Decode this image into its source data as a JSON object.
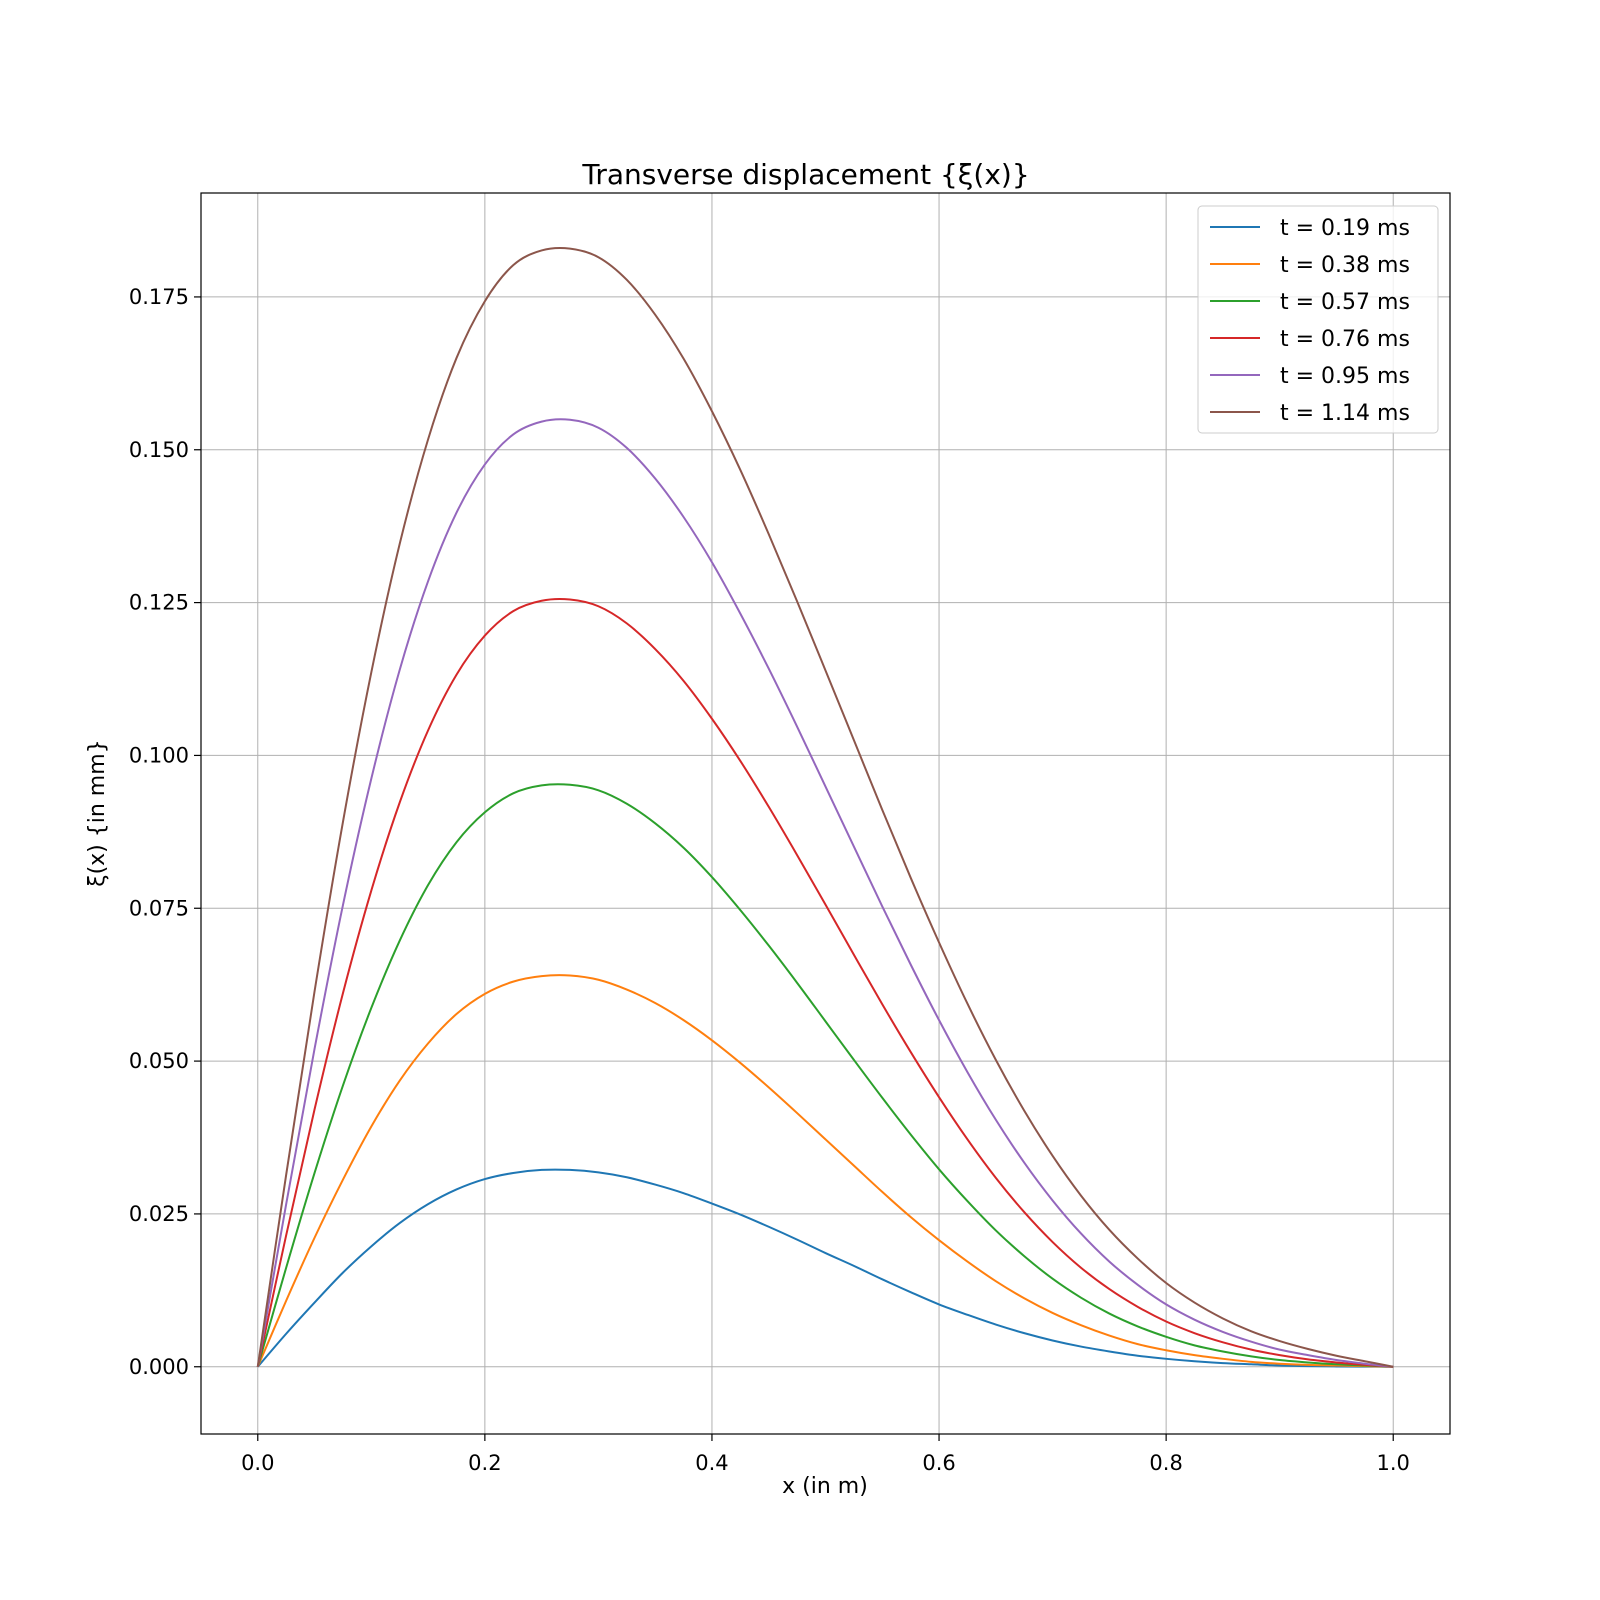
{
  "chart_data": {
    "type": "line",
    "title": "Transverse displacement {ξ(x)}",
    "xlabel": "x (in m)",
    "ylabel": "ξ(x) {in mm}",
    "xlim": [
      -0.05,
      1.05
    ],
    "ylim": [
      -0.011,
      0.192
    ],
    "xticks": [
      0.0,
      0.2,
      0.4,
      0.6,
      0.8,
      1.0
    ],
    "xtick_labels": [
      "0.0",
      "0.2",
      "0.4",
      "0.6",
      "0.8",
      "1.0"
    ],
    "yticks": [
      0.0,
      0.025,
      0.05,
      0.075,
      0.1,
      0.125,
      0.15,
      0.175
    ],
    "ytick_labels": [
      "0.000",
      "0.025",
      "0.050",
      "0.075",
      "0.100",
      "0.125",
      "0.150",
      "0.175"
    ],
    "grid": true,
    "legend_position": "top-right",
    "x": [
      0.0,
      0.025,
      0.05,
      0.075,
      0.1,
      0.125,
      0.15,
      0.175,
      0.2,
      0.225,
      0.25,
      0.275,
      0.3,
      0.325,
      0.35,
      0.375,
      0.4,
      0.425,
      0.45,
      0.475,
      0.5,
      0.525,
      0.55,
      0.575,
      0.6,
      0.625,
      0.65,
      0.675,
      0.7,
      0.725,
      0.75,
      0.775,
      0.8,
      0.825,
      0.85,
      0.875,
      0.9,
      0.925,
      0.95,
      0.975,
      1.0
    ],
    "series": [
      {
        "name": "t = 0.19 ms",
        "color": "#1f77b4",
        "values": [
          0.0,
          0.0054,
          0.0105,
          0.0154,
          0.0197,
          0.0235,
          0.0266,
          0.029,
          0.0307,
          0.0317,
          0.0322,
          0.0322,
          0.0318,
          0.031,
          0.0298,
          0.0284,
          0.0267,
          0.0249,
          0.0229,
          0.0208,
          0.0186,
          0.0165,
          0.0143,
          0.0122,
          0.0102,
          0.0085,
          0.0069,
          0.0055,
          0.0043,
          0.0033,
          0.0025,
          0.0018,
          0.0013,
          0.0009,
          0.0006,
          0.0004,
          0.0002,
          0.0001,
          5e-05,
          2e-05,
          0.0
        ]
      },
      {
        "name": "t = 0.38 ms",
        "color": "#ff7f0e",
        "values": [
          0.0,
          0.0108,
          0.0211,
          0.0306,
          0.0393,
          0.0468,
          0.0529,
          0.0577,
          0.061,
          0.063,
          0.0639,
          0.064,
          0.0633,
          0.0617,
          0.0595,
          0.0567,
          0.0534,
          0.0497,
          0.0457,
          0.0415,
          0.0372,
          0.0329,
          0.0286,
          0.0245,
          0.0207,
          0.0172,
          0.014,
          0.0112,
          0.0088,
          0.0068,
          0.0051,
          0.0037,
          0.0027,
          0.0019,
          0.0013,
          0.0008,
          0.0005,
          0.0003,
          0.0002,
          0.0001,
          0.0
        ]
      },
      {
        "name": "t = 0.57 ms",
        "color": "#2ca02c",
        "values": [
          0.0,
          0.0162,
          0.0317,
          0.046,
          0.0587,
          0.0697,
          0.0788,
          0.0858,
          0.0907,
          0.0938,
          0.0951,
          0.0952,
          0.0943,
          0.0921,
          0.0889,
          0.0849,
          0.0801,
          0.0747,
          0.0689,
          0.0628,
          0.0565,
          0.0502,
          0.044,
          0.038,
          0.0323,
          0.0271,
          0.0223,
          0.0181,
          0.0144,
          0.0113,
          0.0087,
          0.0066,
          0.0049,
          0.0035,
          0.0025,
          0.0017,
          0.0011,
          0.0007,
          0.0004,
          0.0002,
          0.0
        ]
      },
      {
        "name": "t = 0.76 ms",
        "color": "#d62728",
        "values": [
          0.0,
          0.0215,
          0.0421,
          0.0611,
          0.0779,
          0.0923,
          0.1041,
          0.1132,
          0.1196,
          0.1236,
          0.1253,
          0.1255,
          0.1244,
          0.1216,
          0.1174,
          0.1122,
          0.106,
          0.0991,
          0.0916,
          0.0837,
          0.0756,
          0.0674,
          0.0593,
          0.0515,
          0.0441,
          0.0372,
          0.0309,
          0.0253,
          0.0204,
          0.0162,
          0.0127,
          0.0098,
          0.0074,
          0.0055,
          0.004,
          0.0028,
          0.0019,
          0.0012,
          0.0007,
          0.0003,
          0.0
        ]
      },
      {
        "name": "t = 0.95 ms",
        "color": "#9467bd",
        "values": [
          0.0,
          0.0266,
          0.052,
          0.0755,
          0.0962,
          0.114,
          0.1285,
          0.1397,
          0.1476,
          0.1525,
          0.1546,
          0.1549,
          0.1536,
          0.1503,
          0.1453,
          0.139,
          0.1316,
          0.1232,
          0.1142,
          0.1047,
          0.0949,
          0.0851,
          0.0753,
          0.0658,
          0.0567,
          0.0482,
          0.0404,
          0.0334,
          0.0272,
          0.0218,
          0.0172,
          0.0134,
          0.0102,
          0.0077,
          0.0057,
          0.0041,
          0.0028,
          0.0019,
          0.0011,
          0.0005,
          0.0
        ]
      },
      {
        "name": "t = 1.14 ms",
        "color": "#8c564b",
        "values": [
          0.0,
          0.0314,
          0.0614,
          0.0891,
          0.1136,
          0.1346,
          0.1517,
          0.165,
          0.1743,
          0.1802,
          0.1826,
          0.1829,
          0.1815,
          0.1778,
          0.1721,
          0.1649,
          0.1563,
          0.1467,
          0.1362,
          0.1252,
          0.1139,
          0.1025,
          0.0911,
          0.08,
          0.0694,
          0.0594,
          0.0502,
          0.0419,
          0.0345,
          0.028,
          0.0224,
          0.0177,
          0.0137,
          0.0105,
          0.0079,
          0.0058,
          0.0042,
          0.0029,
          0.0018,
          0.0009,
          0.0
        ]
      }
    ]
  }
}
